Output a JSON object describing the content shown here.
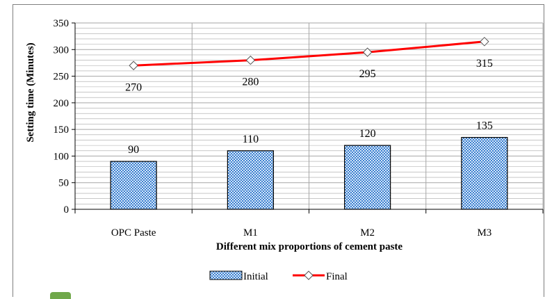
{
  "chart_data": {
    "type": "bar",
    "categories": [
      "OPC Paste",
      "M1",
      "M2",
      "M3"
    ],
    "series": [
      {
        "name": "Initial",
        "type": "bar",
        "values": [
          90,
          110,
          120,
          135
        ],
        "color": "#3a7fd0",
        "pattern": "checkered"
      },
      {
        "name": "Final",
        "type": "line",
        "values": [
          270,
          280,
          295,
          315
        ],
        "color": "#ff0000",
        "marker": "diamond-hollow"
      }
    ],
    "title": "",
    "xlabel": "Different mix proportions of cement paste",
    "ylabel": "Setting time (Minutes)",
    "ylim": [
      0,
      350
    ],
    "yticks": [
      "0",
      "50",
      "100",
      "150",
      "200",
      "250",
      "300",
      "350"
    ],
    "grid": true,
    "legend_position": "bottom"
  },
  "colors": {
    "bar_fill_dark": "#3a7fd0",
    "bar_fill_light": "#d9e8f8",
    "line": "#ff0000",
    "grid": "#a6a6a6",
    "frame": "#7f7f7f",
    "badge": "#70a84a"
  }
}
